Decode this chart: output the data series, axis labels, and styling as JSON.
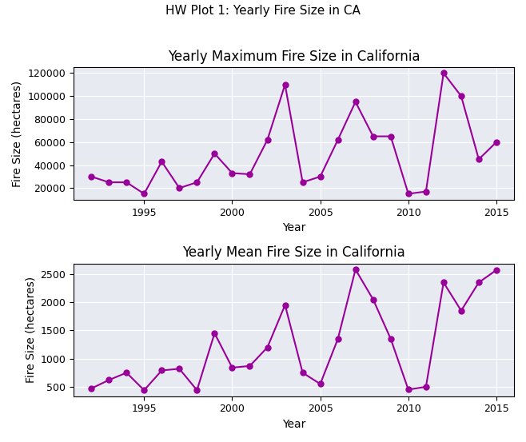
{
  "suptitle": "HW Plot 1: Yearly Fire Size in CA",
  "top_title": "Yearly Maximum Fire Size in California",
  "bottom_title": "Yearly Mean Fire Size in California",
  "ylabel_top": "Fire Size (hectares)",
  "ylabel_bottom": "Fire Size (hectares)",
  "xlabel": "Year",
  "years": [
    1992,
    1993,
    1994,
    1995,
    1996,
    1997,
    1998,
    1999,
    2000,
    2001,
    2002,
    2003,
    2004,
    2005,
    2006,
    2007,
    2008,
    2009,
    2010,
    2011,
    2012,
    2013,
    2014,
    2015
  ],
  "max_fire": [
    30000,
    25000,
    25000,
    15000,
    43000,
    20000,
    25000,
    50000,
    33000,
    32000,
    62000,
    110000,
    25000,
    30000,
    62000,
    95000,
    65000,
    65000,
    15000,
    17000,
    120000,
    100000,
    45000,
    60000
  ],
  "mean_fire": [
    470,
    620,
    750,
    440,
    790,
    820,
    440,
    1450,
    840,
    870,
    1200,
    1950,
    750,
    550,
    1350,
    2580,
    2050,
    1350,
    450,
    500,
    2350,
    1850,
    2350,
    2570
  ],
  "line_color": "#990099",
  "marker": "o",
  "marker_size": 5,
  "line_width": 1.5,
  "bg_color": "#e8eaf2",
  "fig_bg_color": "#ffffff"
}
